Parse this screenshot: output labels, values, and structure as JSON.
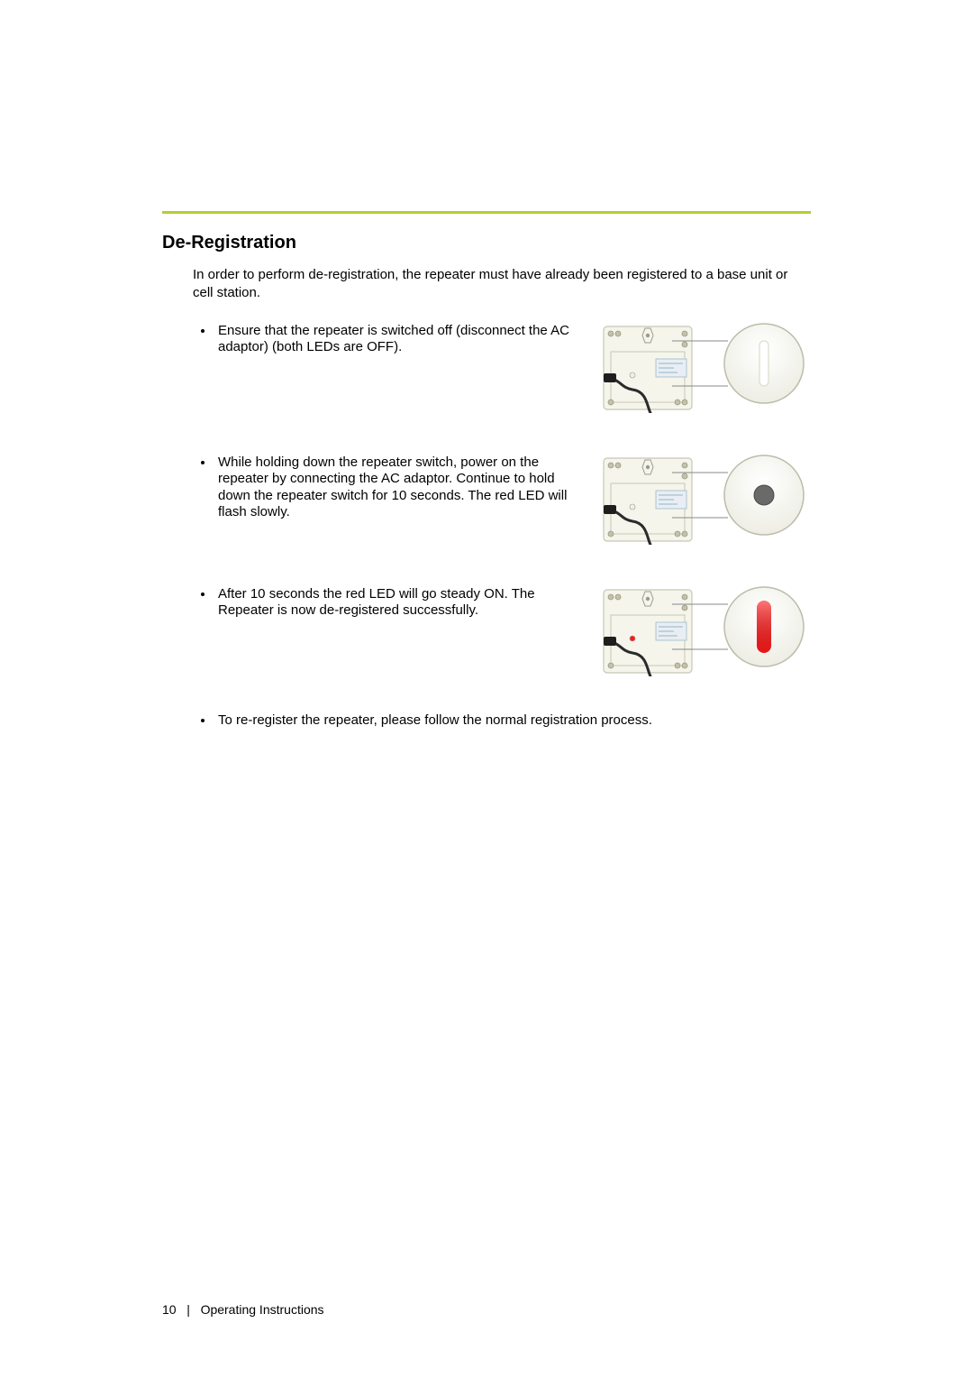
{
  "page": {
    "number": "10",
    "footer_label": "Operating Instructions",
    "rule_color": "#b7cc33",
    "heading": "De-Registration",
    "intro": "In order to perform de-registration, the repeater must have already been registered to a base unit or cell station.",
    "steps": [
      {
        "text": "Ensure that the repeater is switched off (disconnect the AC adaptor) (both LEDs are OFF)."
      },
      {
        "text": "While holding down the repeater switch, power on the repeater by connecting the AC adaptor. Continue to hold down the repeater switch for 10 seconds. The red LED will flash slowly."
      },
      {
        "text": "After 10 seconds the red LED will go steady ON. The Repeater is now de-registered successfully."
      },
      {
        "text": "To re-register the repeater, please follow the normal registration process."
      }
    ],
    "figures": [
      {
        "led_on": false,
        "led_color": "#ffffff",
        "zoom_type": "slot"
      },
      {
        "led_on": false,
        "led_color": "#6a6a6a",
        "zoom_type": "button"
      },
      {
        "led_on": true,
        "led_color": "#ff1a1a",
        "zoom_type": "led"
      }
    ],
    "device": {
      "body_color": "#f5f5ec",
      "border_color": "#c7c7b5",
      "accent_color": "#9a9a8a",
      "cable_color": "#2b2b2b",
      "label_bg": "#e8eef3",
      "label_border": "#9fb7c9",
      "screw_color": "#c2c2a8"
    }
  }
}
